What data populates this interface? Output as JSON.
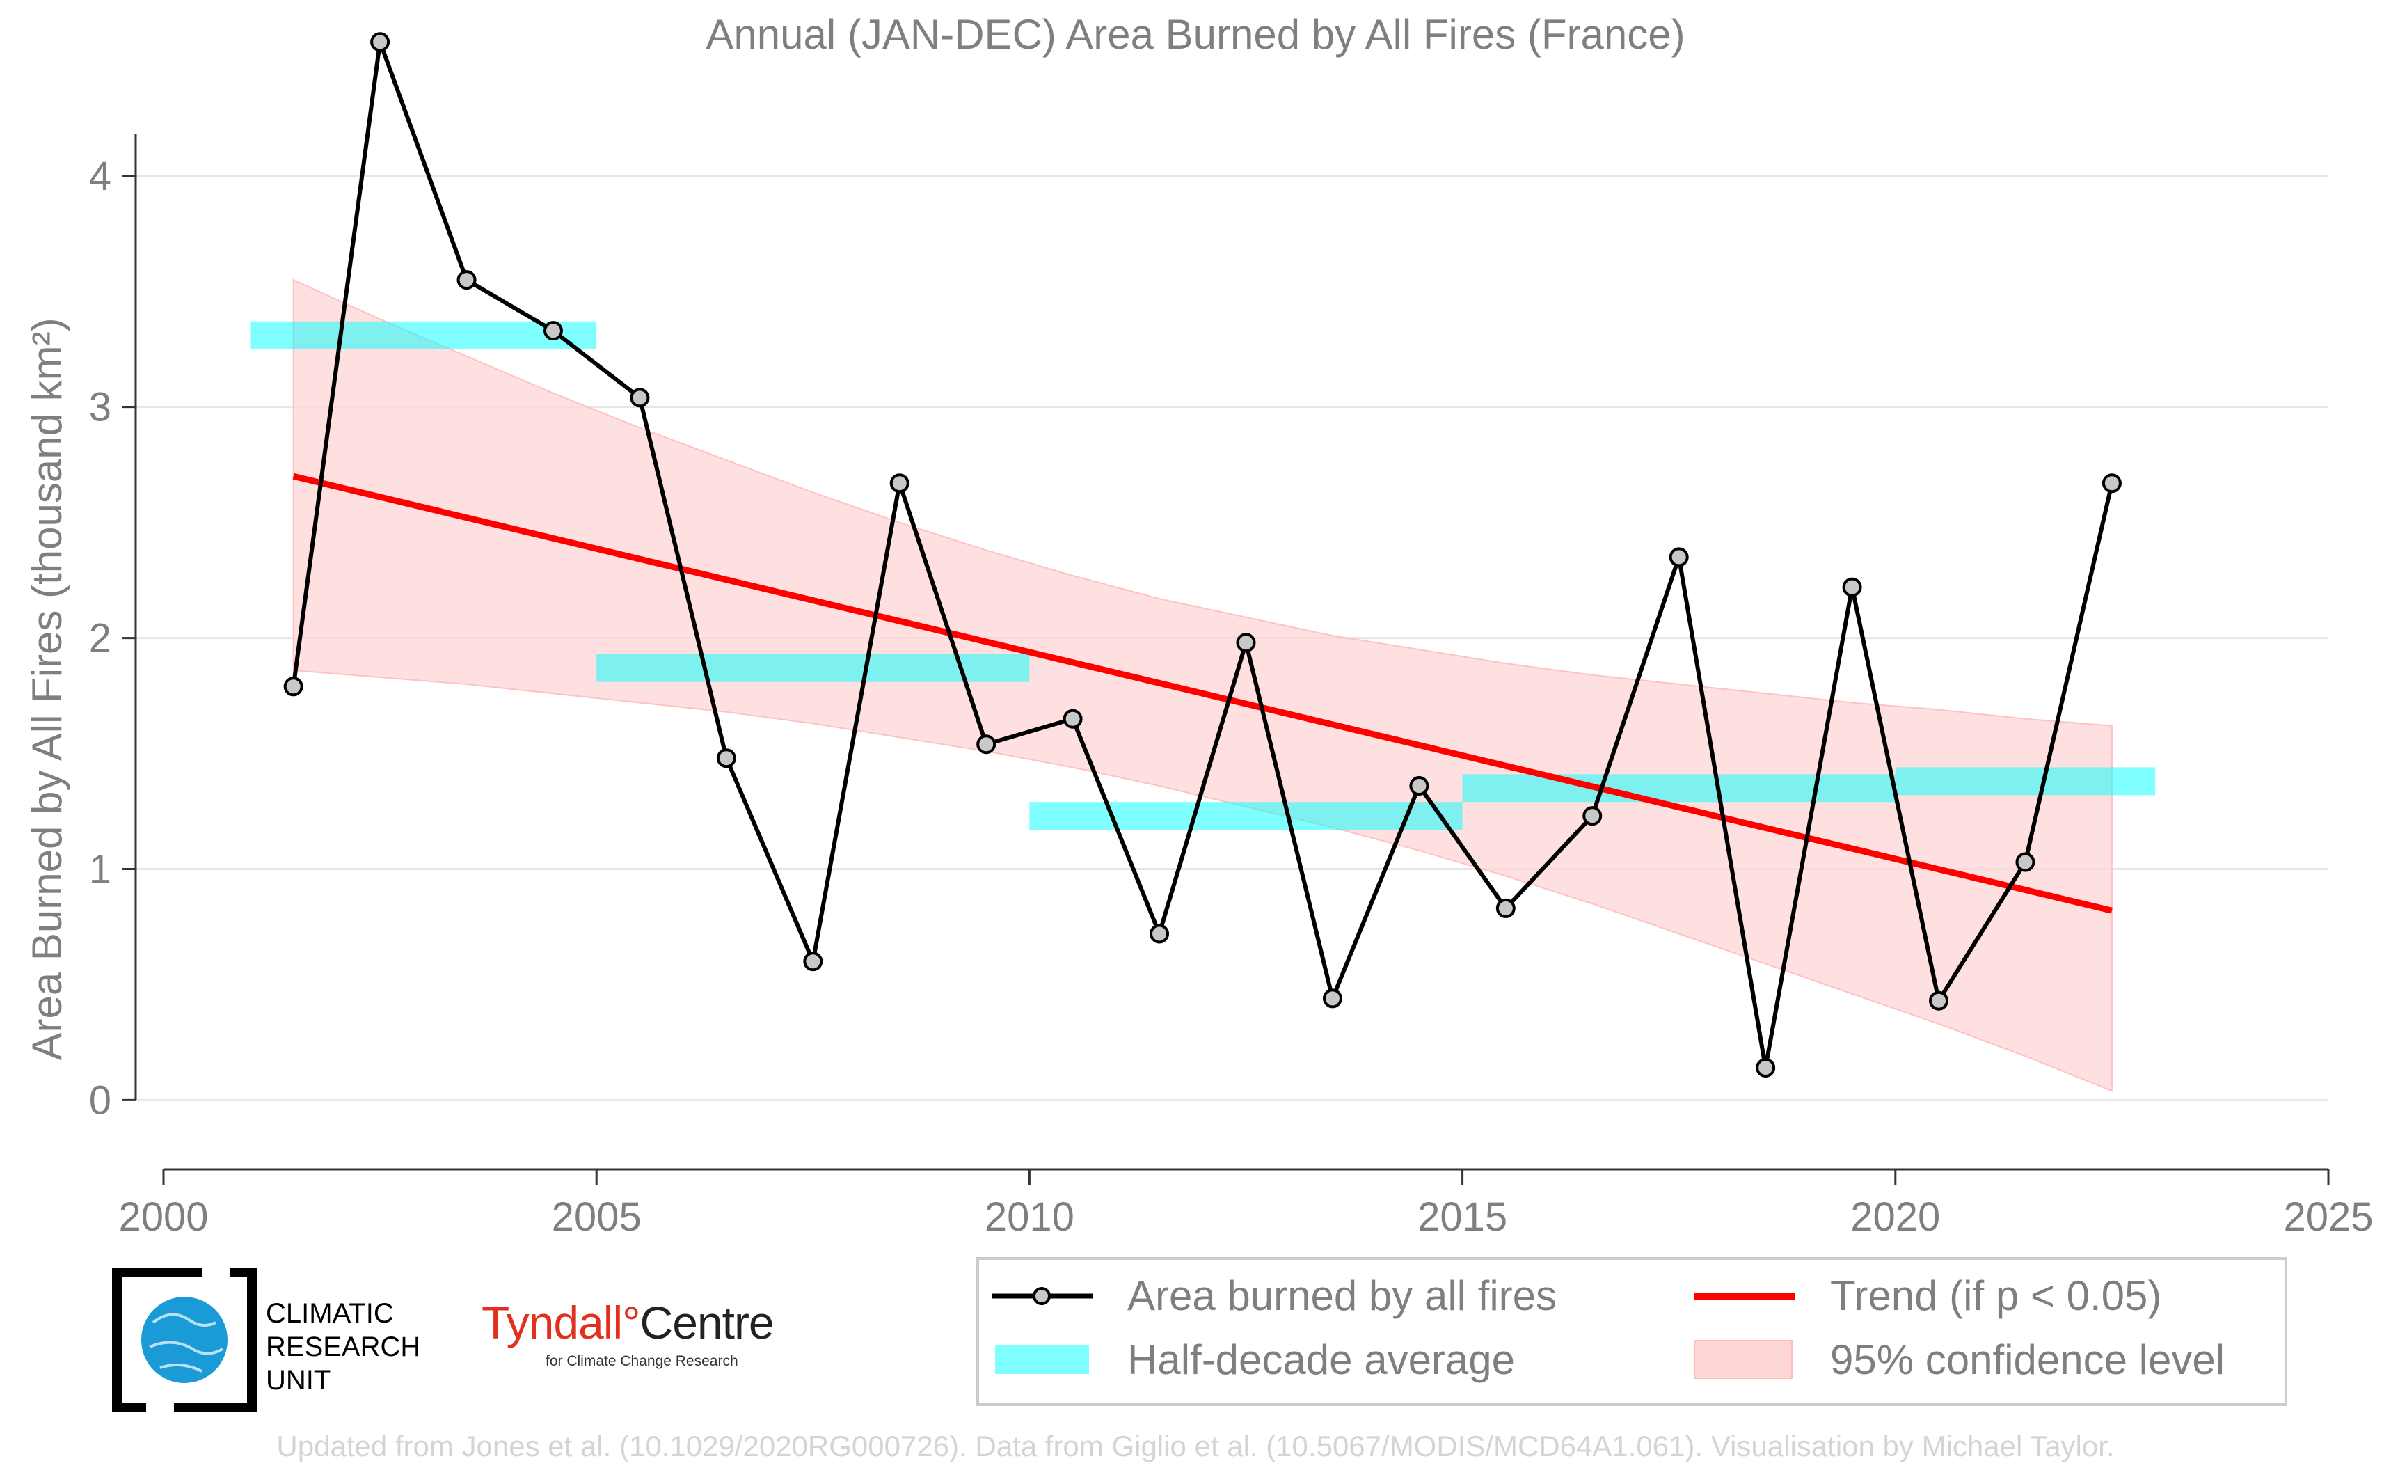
{
  "chart_data": {
    "type": "line",
    "title": "Annual (JAN-DEC) Area Burned by All Fires (France)",
    "ylabel": "Area Burned by All Fires (thousand km²)",
    "xlabel": "",
    "xlim": [
      2000,
      2025
    ],
    "ylim": [
      -0.3,
      4.4
    ],
    "x_ticks": [
      2000,
      2005,
      2010,
      2015,
      2020,
      2025
    ],
    "y_ticks": [
      0,
      1,
      2,
      3,
      4
    ],
    "grid": "horizontal",
    "legend_position": "bottom-right",
    "series": [
      {
        "name": "Area burned by all fires",
        "color": "#000000",
        "marker_color": "#c8c8c8",
        "x": [
          2001.5,
          2002.5,
          2003.5,
          2004.5,
          2005.5,
          2006.5,
          2007.5,
          2008.5,
          2009.5,
          2010.5,
          2011.5,
          2012.5,
          2013.5,
          2014.5,
          2015.5,
          2016.5,
          2017.5,
          2018.5,
          2019.5,
          2020.5,
          2021.5,
          2022.5
        ],
        "y": [
          1.79,
          4.58,
          3.55,
          3.33,
          3.04,
          1.48,
          0.6,
          2.67,
          1.54,
          1.65,
          0.72,
          1.98,
          0.44,
          1.36,
          0.83,
          1.23,
          2.35,
          0.14,
          2.22,
          0.43,
          1.03,
          2.67
        ]
      }
    ],
    "half_decade_averages": {
      "name": "Half-decade average",
      "color": "#00ffff",
      "segments": [
        {
          "x0": 2001,
          "x1": 2005,
          "y": 3.31
        },
        {
          "x0": 2005,
          "x1": 2010,
          "y": 1.87
        },
        {
          "x0": 2010,
          "x1": 2015,
          "y": 1.23
        },
        {
          "x0": 2015,
          "x1": 2020,
          "y": 1.35
        },
        {
          "x0": 2020,
          "x1": 2023,
          "y": 1.38
        }
      ]
    },
    "trend": {
      "name": "Trend (if p < 0.05)",
      "color": "#ff0000",
      "x": [
        2001.5,
        2022.5
      ],
      "y": [
        2.7,
        0.82
      ]
    },
    "confidence_band": {
      "name": "95% confidence level",
      "color": "#ffd6d6",
      "x": [
        2001.5,
        2002.5,
        2003.5,
        2004.5,
        2005.5,
        2006.5,
        2007.5,
        2008.5,
        2009.5,
        2010.5,
        2011.5,
        2012.5,
        2013.5,
        2014.5,
        2015.5,
        2016.5,
        2017.5,
        2018.5,
        2019.5,
        2020.5,
        2021.5,
        2022.5
      ],
      "upper": [
        3.55,
        3.38,
        3.22,
        3.06,
        2.91,
        2.77,
        2.63,
        2.5,
        2.38,
        2.27,
        2.17,
        2.09,
        2.01,
        1.95,
        1.89,
        1.84,
        1.8,
        1.76,
        1.72,
        1.69,
        1.65,
        1.62
      ],
      "lower": [
        1.86,
        1.83,
        1.8,
        1.76,
        1.72,
        1.68,
        1.63,
        1.57,
        1.51,
        1.44,
        1.36,
        1.27,
        1.18,
        1.08,
        0.97,
        0.85,
        0.72,
        0.59,
        0.46,
        0.33,
        0.19,
        0.04
      ]
    }
  },
  "legend": {
    "items": [
      {
        "label": "Area burned by all fires",
        "kind": "line-marker"
      },
      {
        "label": "Half-decade average",
        "kind": "cyan-bar"
      },
      {
        "label": "Trend (if p < 0.05)",
        "kind": "red-line"
      },
      {
        "label": "95% confidence level",
        "kind": "pink-box"
      }
    ]
  },
  "logos": {
    "cru": {
      "line1": "CLIMATIC",
      "line2": "RESEARCH",
      "line3": "UNIT"
    },
    "tyndall": {
      "name": "Tyndall",
      "degree": "°",
      "centre": "Centre",
      "subtitle": "for Climate Change Research"
    }
  },
  "footer": "Updated from Jones et al. (10.1029/2020RG000726). Data from Giglio et al. (10.5067/MODIS/MCD64A1.061). Visualisation by Michael Taylor."
}
